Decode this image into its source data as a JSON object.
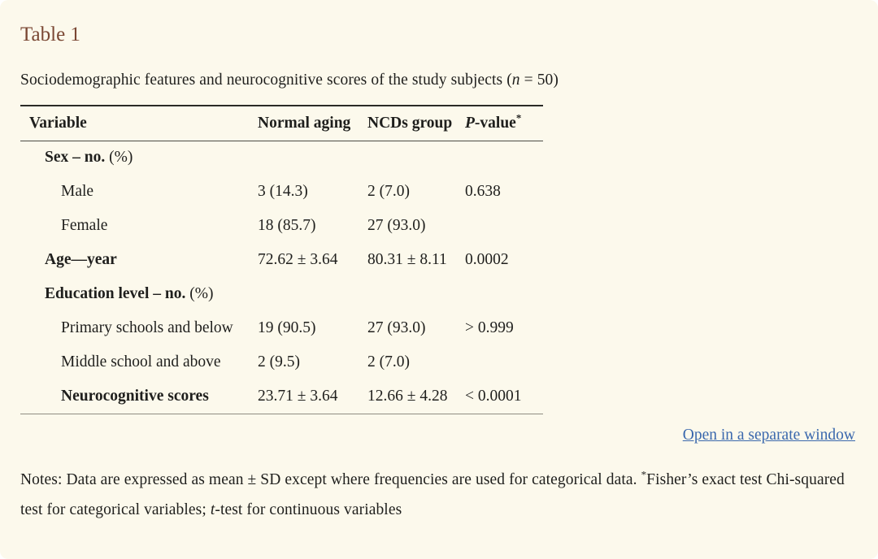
{
  "page": {
    "title": "Table 1",
    "title_color": "#7a4733",
    "background_color": "#fcf9ec",
    "subtitle": {
      "before": "Sociodemographic features and neurocognitive scores of the study subjects (",
      "italic_var": "n",
      "after": " = 50)"
    }
  },
  "table": {
    "headers": {
      "variable": "Variable",
      "normal_aging": "Normal aging",
      "ncds_group": "NCDs group",
      "p_value_italic": "P",
      "p_value_rest": "-value",
      "p_value_sup": "*"
    },
    "rows": [
      {
        "label": "Sex – no.",
        "suffix": " (%)",
        "bold": true,
        "indent": 1,
        "values": [
          "",
          "",
          ""
        ]
      },
      {
        "label": "Male",
        "bold": false,
        "indent": 2,
        "values": [
          "3 (14.3)",
          "2 (7.0)",
          "0.638"
        ]
      },
      {
        "label": "Female",
        "bold": false,
        "indent": 2,
        "values": [
          "18 (85.7)",
          "27 (93.0)",
          ""
        ]
      },
      {
        "label": "Age—year",
        "bold": true,
        "indent": 1,
        "values": [
          "72.62 ± 3.64",
          "80.31 ± 8.11",
          "0.0002"
        ]
      },
      {
        "label": "Education level – no.",
        "suffix": " (%)",
        "bold": true,
        "indent": 1,
        "values": [
          "",
          "",
          ""
        ]
      },
      {
        "label": "Primary schools and below",
        "bold": false,
        "indent": 2,
        "values": [
          "19 (90.5)",
          "27 (93.0)",
          "> 0.999"
        ]
      },
      {
        "label": "Middle school and above",
        "bold": false,
        "indent": 2,
        "values": [
          "2 (9.5)",
          "2 (7.0)",
          ""
        ]
      },
      {
        "label": "Neurocognitive scores",
        "bold": true,
        "indent": 2,
        "values": [
          "23.71 ± 3.64",
          "12.66 ± 4.28",
          "< 0.0001"
        ]
      }
    ]
  },
  "link": {
    "label": "Open in a separate window",
    "color": "#3a68ad"
  },
  "notes": {
    "part1": "Notes: Data are expressed as mean ± SD except where frequencies are used for categorical data. ",
    "asterisk": "*",
    "part2": "Fisher’s exact test Chi-squared test for categorical variables; ",
    "italic_t": "t",
    "part3": "-test for continuous variables"
  }
}
